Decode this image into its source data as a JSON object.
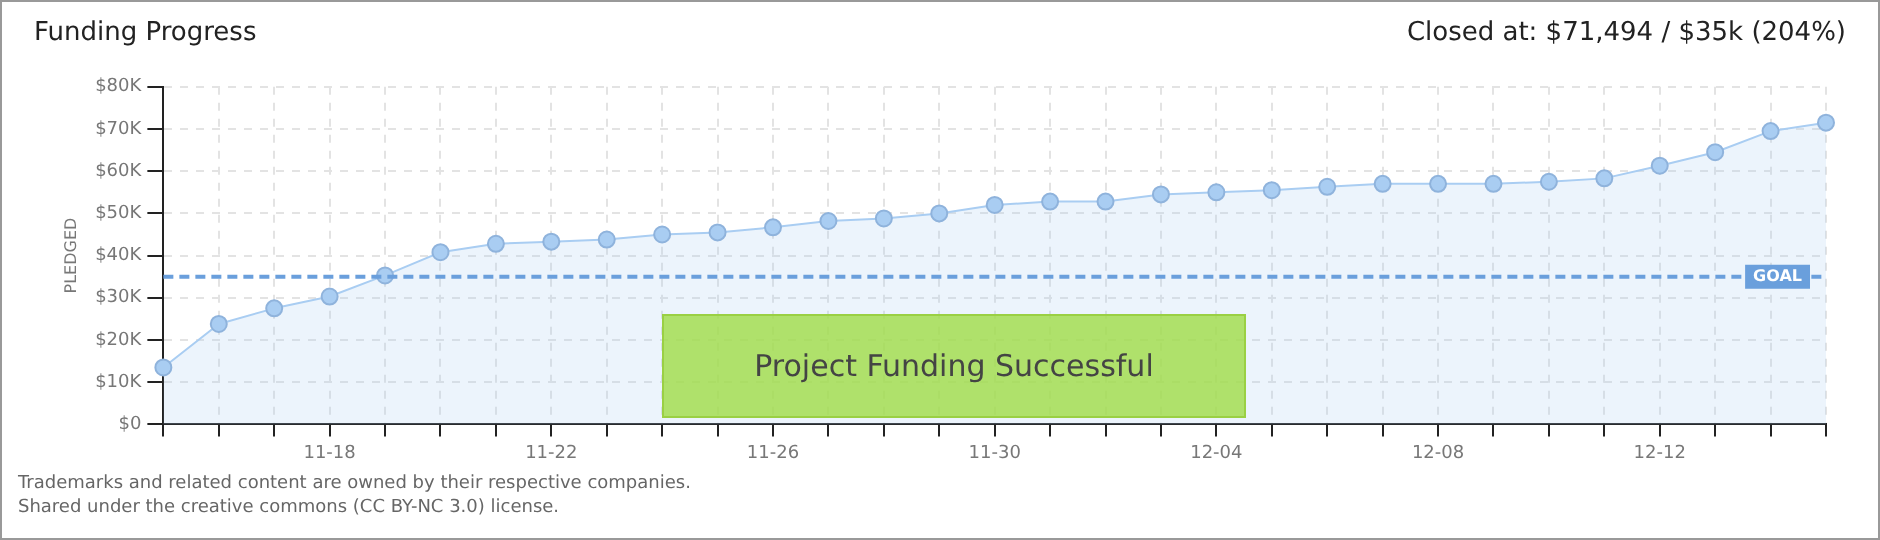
{
  "chart_data": {
    "type": "area",
    "title": "Funding Progress",
    "ylabel": "PLEDGED",
    "annotations": [
      "Closed at: $71,494 / $35k (204%)",
      "Project Funding Successful",
      "Trademarks and related content are owned by their respective companies.",
      "Shared under the creative commons (CC BY-NC 3.0) license."
    ],
    "categories": [
      null,
      null,
      null,
      "11-18",
      null,
      null,
      null,
      "11-22",
      null,
      null,
      null,
      "11-26",
      null,
      null,
      null,
      "11-30",
      null,
      null,
      null,
      "12-04",
      null,
      null,
      null,
      "12-08",
      null,
      null,
      null,
      "12-12",
      null,
      null,
      null
    ],
    "series": [
      {
        "color": "#a9cdf2",
        "values": [
          13.5,
          23.8,
          27.5,
          30.3,
          35.3,
          40.8,
          42.8,
          43.3,
          43.8,
          45,
          45.5,
          46.7,
          48.2,
          48.8,
          50,
          52,
          52.8,
          52.8,
          54.5,
          55,
          55.5,
          56.3,
          57,
          57,
          57,
          57.5,
          58.3,
          61.3,
          64.5,
          69.5,
          71.5
        ]
      }
    ],
    "ylim": [
      0,
      80
    ],
    "yticks": [
      {
        "value": 0,
        "label": "$0"
      },
      {
        "value": 10,
        "label": "$10K"
      },
      {
        "value": 20,
        "label": "$20K"
      },
      {
        "value": 30,
        "label": "$30K"
      },
      {
        "value": 40,
        "label": "$40K"
      },
      {
        "value": 50,
        "label": "$50K"
      },
      {
        "value": 60,
        "label": "$60K"
      },
      {
        "value": 70,
        "label": "$70K"
      },
      {
        "value": 80,
        "label": "$80K"
      }
    ],
    "ref_lines": [
      {
        "axis": "y",
        "value": 35,
        "label": "GOAL",
        "color": "#6a9fdc",
        "line_style": "dashed"
      }
    ],
    "grid": true,
    "legend": false,
    "marker": "circle"
  }
}
